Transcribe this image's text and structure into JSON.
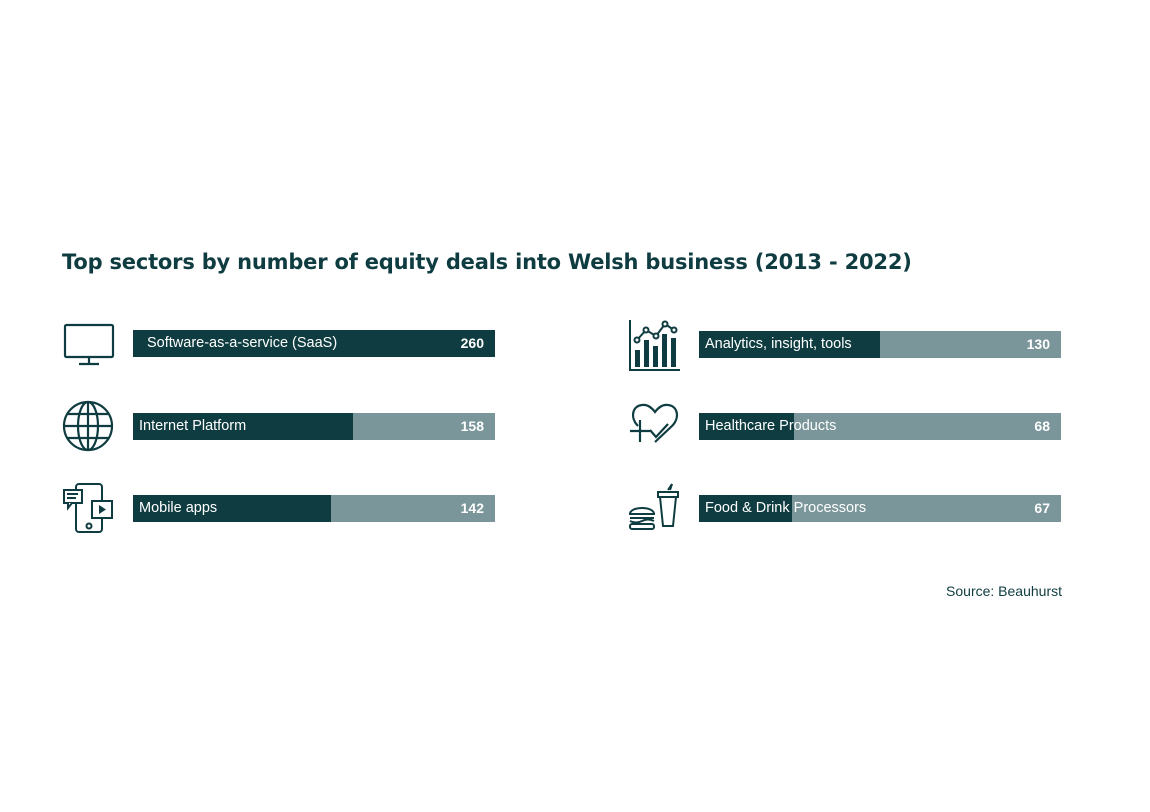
{
  "title": "Top sectors by number of equity deals into Welsh business (2013 - 2022)",
  "source": "Source: Beauhurst",
  "colors": {
    "dark": "#0f3c40",
    "light": "#7a969a",
    "text_on_bar": "#ffffff"
  },
  "chart_data": {
    "type": "bar",
    "title": "Top sectors by number of equity deals into Welsh business (2013 - 2022)",
    "orientation": "horizontal",
    "xlim": [
      0,
      260
    ],
    "categories": [
      "Software-as-a-service (SaaS)",
      "Internet Platform",
      "Mobile apps",
      "Analytics, insight, tools",
      "Healthcare Products",
      "Food & Drink Processors"
    ],
    "values": [
      260,
      158,
      142,
      130,
      68,
      67
    ],
    "icons": [
      "monitor-icon",
      "globe-icon",
      "mobile-apps-icon",
      "analytics-chart-icon",
      "heart-plus-icon",
      "burger-drink-icon"
    ]
  }
}
